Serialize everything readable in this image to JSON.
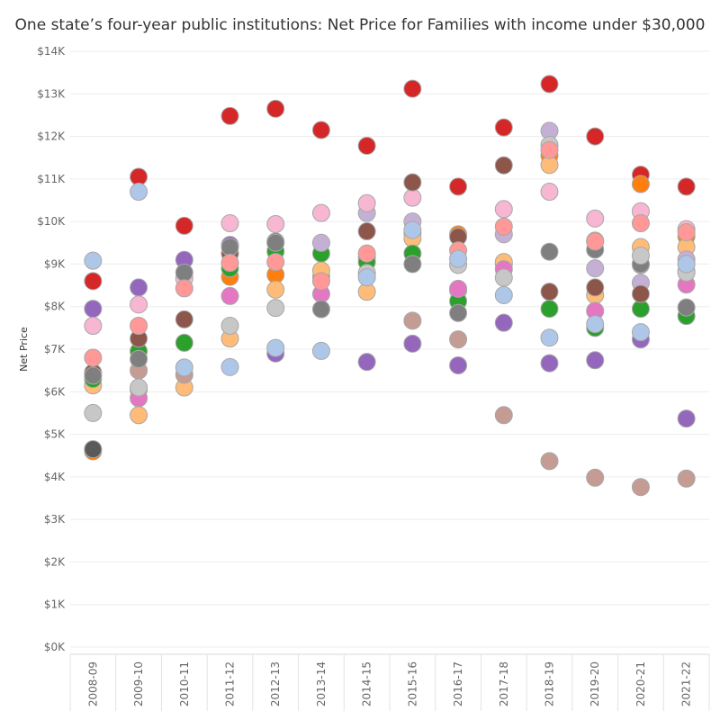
{
  "chart_data": {
    "type": "scatter",
    "title": "One state’s four-year public institutions: Net Price for Families with income under $30,000",
    "xlabel": "",
    "ylabel": "Net Price",
    "ylim": [
      0,
      14000
    ],
    "y_ticks": [
      {
        "value": 0,
        "label": "$0K"
      },
      {
        "value": 1000,
        "label": "$1K"
      },
      {
        "value": 2000,
        "label": "$2K"
      },
      {
        "value": 3000,
        "label": "$3K"
      },
      {
        "value": 4000,
        "label": "$4K"
      },
      {
        "value": 5000,
        "label": "$5K"
      },
      {
        "value": 6000,
        "label": "$6K"
      },
      {
        "value": 7000,
        "label": "$7K"
      },
      {
        "value": 8000,
        "label": "$8K"
      },
      {
        "value": 9000,
        "label": "$9K"
      },
      {
        "value": 10000,
        "label": "$10K"
      },
      {
        "value": 11000,
        "label": "$11K"
      },
      {
        "value": 12000,
        "label": "$12K"
      },
      {
        "value": 13000,
        "label": "$13K"
      },
      {
        "value": 14000,
        "label": "$14K"
      }
    ],
    "categories": [
      "2008-09",
      "2009-10",
      "2010-11",
      "2011-12",
      "2012-13",
      "2013-14",
      "2014-15",
      "2015-16",
      "2016-17",
      "2017-18",
      "2018-19",
      "2019-20",
      "2020-21",
      "2021-22"
    ],
    "grid": true,
    "legend": "none",
    "series": [
      {
        "name": "red",
        "color": "#d62728",
        "values": [
          8600,
          11050,
          9900,
          12480,
          12650,
          12150,
          11780,
          13120,
          10820,
          12210,
          13230,
          12000,
          11100,
          10820
        ]
      },
      {
        "name": "orange",
        "color": "#ff7f0e",
        "values": [
          4600,
          6050,
          null,
          8700,
          8750,
          8700,
          9150,
          9730,
          9700,
          9000,
          11550,
          9550,
          10880,
          9650
        ]
      },
      {
        "name": "light-orange",
        "color": "#ffbb78",
        "values": [
          6150,
          5450,
          6100,
          7250,
          8400,
          8850,
          8350,
          9600,
          8380,
          9050,
          11330,
          8270,
          9400,
          9400
        ]
      },
      {
        "name": "green",
        "color": "#2ca02c",
        "values": [
          6300,
          6950,
          7150,
          8900,
          9300,
          9250,
          9050,
          9250,
          8130,
          null,
          7950,
          7500,
          7950,
          7780
        ]
      },
      {
        "name": "purple",
        "color": "#9467bd",
        "values": [
          7950,
          8450,
          9100,
          9450,
          6900,
          null,
          6700,
          7130,
          6620,
          7620,
          6670,
          6740,
          7230,
          5370
        ]
      },
      {
        "name": "light-purple",
        "color": "#c5b0d5",
        "values": [
          null,
          null,
          null,
          null,
          null,
          9500,
          10200,
          10000,
          null,
          9700,
          12130,
          8900,
          8560,
          9110
        ]
      },
      {
        "name": "pink",
        "color": "#f7b6d2",
        "values": [
          7550,
          8050,
          8660,
          9960,
          9940,
          10200,
          10430,
          10560,
          null,
          10290,
          10700,
          10070,
          10240,
          9820
        ]
      },
      {
        "name": "magenta",
        "color": "#e377c2",
        "values": [
          null,
          5850,
          null,
          8250,
          null,
          8300,
          null,
          null,
          8420,
          8880,
          null,
          7900,
          8980,
          8520
        ]
      },
      {
        "name": "brown",
        "color": "#8c564b",
        "values": [
          6450,
          7250,
          7700,
          9250,
          9530,
          null,
          9770,
          10920,
          9640,
          11320,
          8350,
          8450,
          8300,
          8830
        ]
      },
      {
        "name": "light-brown",
        "color": "#c49c94",
        "values": [
          null,
          6500,
          6400,
          null,
          null,
          null,
          null,
          7670,
          7230,
          5450,
          4370,
          3980,
          3760,
          3960
        ]
      },
      {
        "name": "gray",
        "color": "#7f7f7f",
        "values": [
          6380,
          6770,
          8800,
          9400,
          9500,
          7940,
          null,
          9000,
          7850,
          null,
          9290,
          9340,
          9000,
          7980
        ]
      },
      {
        "name": "light-gray",
        "color": "#c7c7c7",
        "values": [
          5500,
          6100,
          null,
          7550,
          7970,
          null,
          8790,
          null,
          8980,
          8680,
          11800,
          null,
          9200,
          8800
        ]
      },
      {
        "name": "salmon",
        "color": "#ff9896",
        "values": [
          6800,
          7550,
          8430,
          9030,
          9050,
          8600,
          9250,
          null,
          9320,
          9880,
          11680,
          9530,
          9960,
          9750
        ]
      },
      {
        "name": "light-blue",
        "color": "#aec7e8",
        "values": [
          9080,
          10700,
          6570,
          6580,
          7030,
          6960,
          8690,
          9800,
          9120,
          8270,
          7270,
          7590,
          7400,
          9000
        ]
      },
      {
        "name": "dark-gray-2",
        "color": "#5a5a5a",
        "values": [
          4650,
          null,
          null,
          null,
          null,
          null,
          null,
          null,
          null,
          null,
          null,
          null,
          null,
          null
        ]
      }
    ]
  }
}
